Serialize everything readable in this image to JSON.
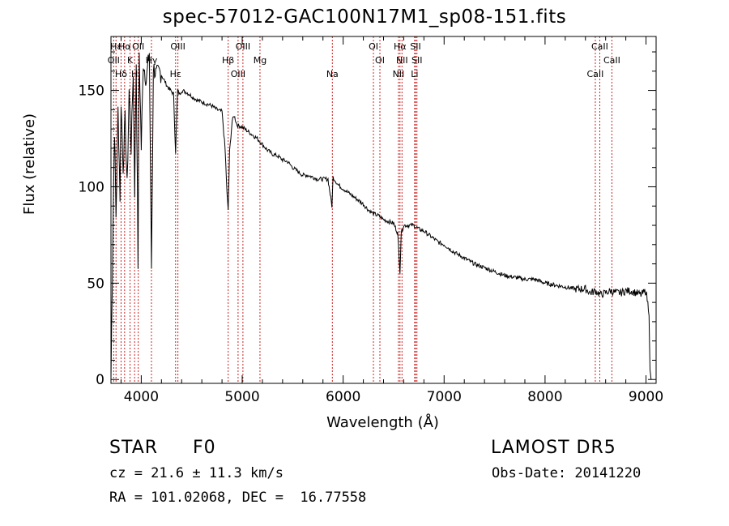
{
  "chart_data": {
    "type": "line",
    "title": "spec-57012-GAC100N17M1_sp08-151.fits",
    "xlabel": "Wavelength (Å)",
    "ylabel": "Flux (relative)",
    "xlim": [
      3700,
      9100
    ],
    "ylim": [
      -2,
      178
    ],
    "xticks": [
      4000,
      5000,
      6000,
      7000,
      8000,
      9000
    ],
    "yticks": [
      0,
      50,
      100,
      150
    ],
    "series": [
      {
        "x": [
          3700,
          3720,
          3735,
          3750,
          3770,
          3790,
          3800,
          3820,
          3840,
          3860,
          3880,
          3900,
          3920,
          3935,
          3950,
          3968,
          3980,
          4000,
          4020,
          4050,
          4080,
          4101,
          4120,
          4150,
          4180,
          4200,
          4230,
          4260,
          4290,
          4320,
          4340,
          4360,
          4380,
          4400,
          4450,
          4500,
          4550,
          4600,
          4650,
          4700,
          4750,
          4800,
          4830,
          4850,
          4861,
          4875,
          4900,
          4920,
          4950,
          5000,
          5050,
          5100,
          5150,
          5200,
          5250,
          5300,
          5350,
          5400,
          5450,
          5500,
          5550,
          5600,
          5650,
          5700,
          5750,
          5800,
          5850,
          5889,
          5900,
          5950,
          6000,
          6050,
          6100,
          6150,
          6200,
          6250,
          6300,
          6350,
          6400,
          6450,
          6500,
          6540,
          6563,
          6575,
          6600,
          6650,
          6700,
          6750,
          6800,
          6850,
          6900,
          6950,
          7000,
          7100,
          7200,
          7300,
          7400,
          7500,
          7600,
          7700,
          7800,
          7900,
          8000,
          8100,
          8200,
          8300,
          8400,
          8450,
          8500,
          8550,
          8600,
          8650,
          8700,
          8750,
          8800,
          8850,
          8900,
          8950,
          9000,
          9030,
          9040,
          9050
        ],
        "y": [
          0,
          80,
          130,
          85,
          140,
          95,
          145,
          110,
          135,
          100,
          150,
          120,
          160,
          98,
          165,
          60,
          170,
          120,
          165,
          155,
          170,
          58,
          162,
          158,
          160,
          158,
          155,
          152,
          150,
          148,
          118,
          150,
          148,
          150,
          149,
          147,
          145,
          144,
          143,
          142,
          140,
          139,
          120,
          96,
          88,
          118,
          134,
          137,
          132,
          131,
          129,
          127,
          125,
          122,
          119,
          117,
          116,
          114,
          113,
          110,
          108,
          106,
          106,
          105,
          104,
          104,
          104,
          90,
          105,
          101,
          99,
          97,
          95,
          93,
          91,
          88,
          86,
          85,
          83,
          82,
          81,
          76,
          56,
          76,
          80,
          80,
          80,
          78,
          77,
          75,
          73,
          71,
          70,
          66,
          63,
          60,
          58,
          56,
          54,
          53,
          52,
          52,
          50,
          49,
          48,
          47,
          47,
          45,
          46,
          44,
          45,
          46,
          45,
          45,
          46,
          46,
          45,
          44,
          46,
          35,
          4,
          0
        ]
      }
    ],
    "lines": [
      {
        "label": "Hε",
        "wl": 3750
      },
      {
        "label": "OII",
        "wl": 3727
      },
      {
        "label": "Hδ",
        "wl": 3800
      },
      {
        "label": "Hα",
        "wl": 3835
      },
      {
        "label": "K",
        "wl": 3889
      },
      {
        "label": "H",
        "wl": 3934
      },
      {
        "label": "OII",
        "wl": 3970
      },
      {
        "label": "Hγ",
        "wl": 4101
      },
      {
        "label": "Hε",
        "wl": 4340
      },
      {
        "label": "OIII",
        "wl": 4363
      },
      {
        "label": "Hβ",
        "wl": 4861
      },
      {
        "label": "OIII",
        "wl": 4959
      },
      {
        "label": "OIII",
        "wl": 5007
      },
      {
        "label": "Mg",
        "wl": 5176
      },
      {
        "label": "Na",
        "wl": 5893
      },
      {
        "label": "OI",
        "wl": 6300
      },
      {
        "label": "OI",
        "wl": 6364
      },
      {
        "label": "NII",
        "wl": 6548
      },
      {
        "label": "Hα",
        "wl": 6563
      },
      {
        "label": "NII",
        "wl": 6583
      },
      {
        "label": "Li",
        "wl": 6708
      },
      {
        "label": "SII",
        "wl": 6717
      },
      {
        "label": "SII",
        "wl": 6731
      },
      {
        "label": "CaII",
        "wl": 8498
      },
      {
        "label": "CaII",
        "wl": 8542
      },
      {
        "label": "CaII",
        "wl": 8662
      }
    ],
    "line_color": "#cc2222",
    "spectrum_color": "#000000",
    "grid": false
  },
  "info": {
    "class": "STAR",
    "subclass": "F0",
    "survey": "LAMOST DR5",
    "cz": "cz = 21.6 ± 11.3 km/s",
    "obs_date": "Obs-Date: 20141220",
    "coords": "RA = 101.02068, DEC =  16.77558"
  }
}
